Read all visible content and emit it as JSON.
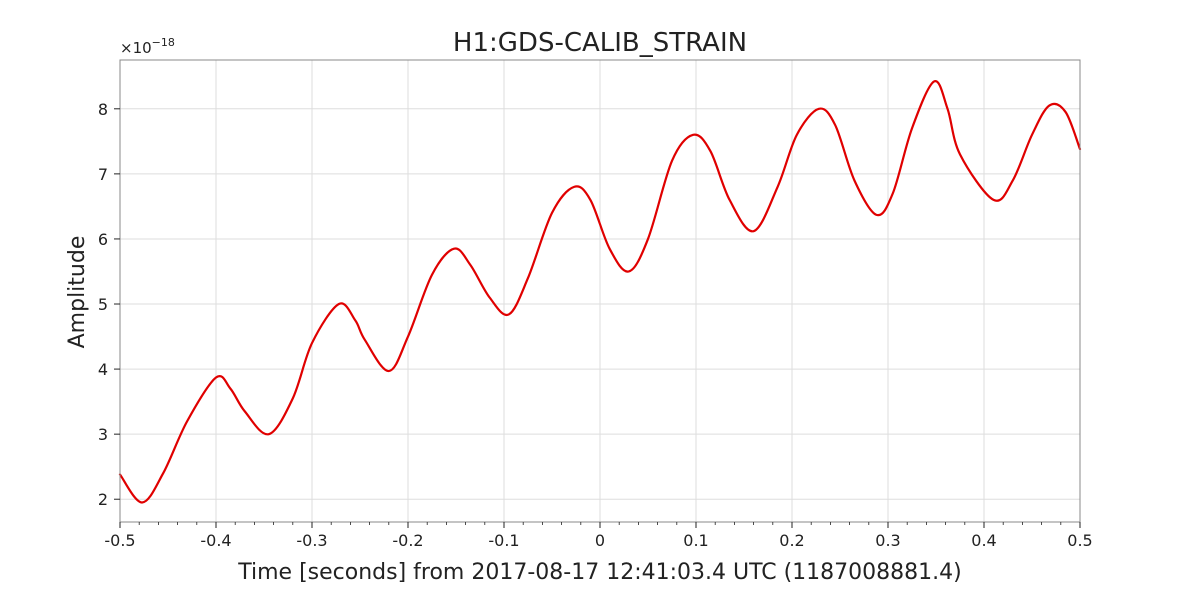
{
  "chart_data": {
    "type": "line",
    "title": "H1:GDS-CALIB_STRAIN",
    "xlabel": "Time [seconds] from 2017-08-17 12:41:03.4 UTC (1187008881.4)",
    "ylabel": "Amplitude",
    "y_offset_label": "×10",
    "y_offset_exponent": "−18",
    "xlim": [
      -0.5,
      0.5
    ],
    "ylim": [
      1.65,
      8.75
    ],
    "grid": true,
    "x_ticks": [
      -0.5,
      -0.4,
      -0.3,
      -0.2,
      -0.1,
      0,
      0.1,
      0.2,
      0.3,
      0.4,
      0.5
    ],
    "x_tick_labels": [
      "-0.5",
      "-0.4",
      "-0.3",
      "-0.2",
      "-0.1",
      "0",
      "0.1",
      "0.2",
      "0.3",
      "0.4",
      "0.5"
    ],
    "y_ticks": [
      2,
      3,
      4,
      5,
      6,
      7,
      8
    ],
    "y_tick_labels": [
      "2",
      "3",
      "4",
      "5",
      "6",
      "7",
      "8"
    ],
    "colors": {
      "line": "#e00000",
      "grid": "#dddddd",
      "frame": "#888888"
    },
    "series": [
      {
        "x": [
          -0.5,
          -0.477,
          -0.455,
          -0.43,
          -0.4,
          -0.385,
          -0.37,
          -0.345,
          -0.32,
          -0.3,
          -0.272,
          -0.255,
          -0.245,
          -0.22,
          -0.2,
          -0.175,
          -0.152,
          -0.135,
          -0.115,
          -0.095,
          -0.075,
          -0.05,
          -0.027,
          -0.01,
          0.01,
          0.03,
          0.05,
          0.075,
          0.097,
          0.115,
          0.135,
          0.16,
          0.185,
          0.205,
          0.228,
          0.245,
          0.265,
          0.288,
          0.305,
          0.325,
          0.348,
          0.362,
          0.375,
          0.41,
          0.43,
          0.45,
          0.468,
          0.485,
          0.5
        ],
        "y": [
          2.38,
          1.95,
          2.4,
          3.2,
          3.87,
          3.7,
          3.35,
          3.0,
          3.55,
          4.4,
          5.0,
          4.75,
          4.45,
          3.97,
          4.5,
          5.45,
          5.85,
          5.6,
          5.1,
          4.84,
          5.4,
          6.4,
          6.8,
          6.6,
          5.85,
          5.5,
          6.0,
          7.2,
          7.6,
          7.35,
          6.6,
          6.12,
          6.8,
          7.6,
          8.0,
          7.75,
          6.9,
          6.37,
          6.7,
          7.7,
          8.42,
          8.0,
          7.3,
          6.6,
          6.9,
          7.6,
          8.05,
          7.95,
          7.38
        ]
      }
    ]
  }
}
